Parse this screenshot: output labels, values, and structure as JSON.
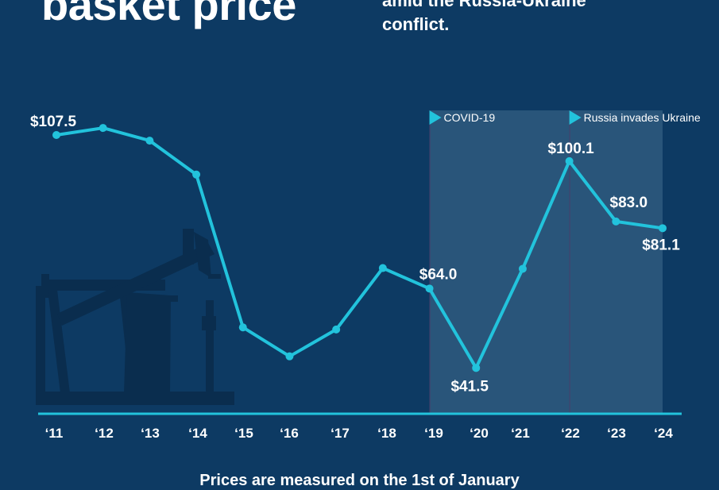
{
  "header": {
    "title": "basket price",
    "subtitle_lines": [
      "",
      "amid the Russia-Ukraine",
      "conflict."
    ]
  },
  "footer": {
    "note": "Prices are measured on the 1st of January"
  },
  "colors": {
    "background": "#0d3a63",
    "line": "#22c3dc",
    "axis": "#22c3dc",
    "highlight_band": "#2f5a7e",
    "silhouette": "#0a2d4e"
  },
  "chart_data": {
    "type": "line",
    "categories": [
      "‘11",
      "‘12",
      "‘13",
      "‘14",
      "‘15",
      "‘16",
      "‘17",
      "‘18",
      "‘19",
      "‘20",
      "‘21",
      "‘22",
      "‘23",
      "‘24"
    ],
    "values": [
      107.5,
      109.5,
      105.9,
      96.3,
      53.0,
      44.8,
      52.4,
      69.8,
      64.0,
      41.5,
      69.6,
      100.1,
      83.0,
      81.1
    ],
    "data_labels": [
      {
        "index": 0,
        "text": "$107.5"
      },
      {
        "index": 8,
        "text": "$64.0"
      },
      {
        "index": 9,
        "text": "$41.5"
      },
      {
        "index": 11,
        "text": "$100.1"
      },
      {
        "index": 12,
        "text": "$83.0"
      },
      {
        "index": 13,
        "text": "$81.1"
      }
    ],
    "annotations": [
      {
        "start_category": "‘19",
        "end_category": "‘22",
        "label": "COVID-19"
      },
      {
        "start_category": "‘22",
        "end_category": "‘24",
        "label": "Russia invades Ukraine"
      }
    ],
    "xlabel": "",
    "ylabel": "",
    "ylim": [
      0,
      120
    ],
    "grid": false,
    "legend": "none"
  }
}
